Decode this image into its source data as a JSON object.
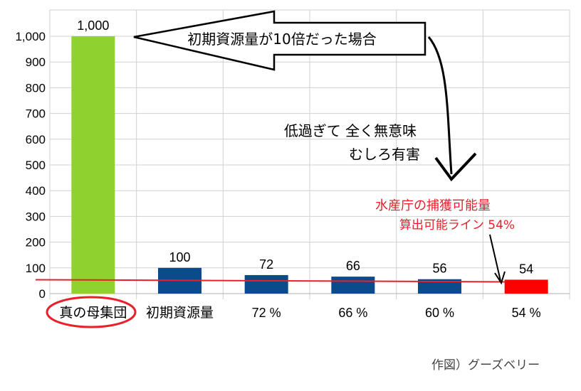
{
  "chart_data": {
    "type": "bar",
    "categories": [
      "真の母集団",
      "初期資源量",
      "72 %",
      "66 %",
      "60 %",
      "54 %"
    ],
    "values": [
      1000,
      100,
      72,
      66,
      56,
      54
    ],
    "data_labels": [
      "1,000",
      "100",
      "72",
      "66",
      "56",
      "54"
    ],
    "bar_colors": [
      "#8fd12e",
      "#0b4a8b",
      "#0b4a8b",
      "#0b4a8b",
      "#0b4a8b",
      "#ff0000"
    ],
    "ylim": [
      0,
      1000
    ],
    "yticks": [
      0,
      100,
      200,
      300,
      400,
      500,
      600,
      700,
      800,
      900,
      1000
    ],
    "ytick_labels": [
      "0",
      "100",
      "200",
      "300",
      "400",
      "500",
      "600",
      "700",
      "800",
      "900",
      "1,000"
    ],
    "grid": true,
    "reference_line": {
      "value": 54,
      "color": "#e8202a"
    },
    "highlighted_category": "真の母集団"
  },
  "annotations": {
    "arrow_text": "初期資源量が10倍だった場合",
    "comment_line1": "低過ぎて 全く無意味",
    "comment_line2": "むしろ有害",
    "red_note_line1": "水産庁の捕獲可能量",
    "red_note_line2": "算出可能ライン 54%"
  },
  "credit": "作図）グーズベリー",
  "colors": {
    "accent_red": "#e8202a",
    "grid": "#d0d0d0"
  }
}
